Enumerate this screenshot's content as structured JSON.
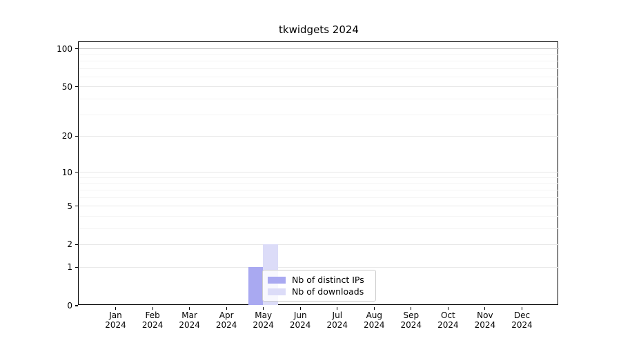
{
  "chart_data": {
    "type": "bar",
    "title": "tkwidgets 2024",
    "xlabel": "",
    "ylabel": "",
    "categories": [
      "Jan",
      "Feb",
      "Mar",
      "Apr",
      "May",
      "Jun",
      "Jul",
      "Aug",
      "Sep",
      "Oct",
      "Nov",
      "Dec"
    ],
    "year_label": "2024",
    "series": [
      {
        "name": "Nb of distinct IPs",
        "color": "#a9a9f1",
        "values": [
          0,
          0,
          0,
          0,
          1,
          0,
          0,
          0,
          0,
          0,
          0,
          0
        ]
      },
      {
        "name": "Nb of downloads",
        "color": "#dcdcf8",
        "values": [
          0,
          0,
          0,
          0,
          2,
          0,
          0,
          0,
          0,
          0,
          0,
          0
        ]
      }
    ],
    "yscale": "log1p",
    "ylim": [
      0,
      113
    ],
    "yticks": [
      0,
      1,
      2,
      5,
      10,
      20,
      50,
      100
    ],
    "minor_gridlines": [
      3,
      4,
      6,
      7,
      8,
      9,
      30,
      40,
      60,
      70,
      80,
      90
    ],
    "grid": "horizontal",
    "legend_position": "inside-bottom-center",
    "colors": {
      "major_grid": "#e8e8e8",
      "minor_grid": "#f4f4f4",
      "top_grid": "#c9c9c9",
      "axis": "#000000",
      "text": "#000000",
      "legend_border": "#cccccc",
      "background": "#ffffff"
    }
  }
}
